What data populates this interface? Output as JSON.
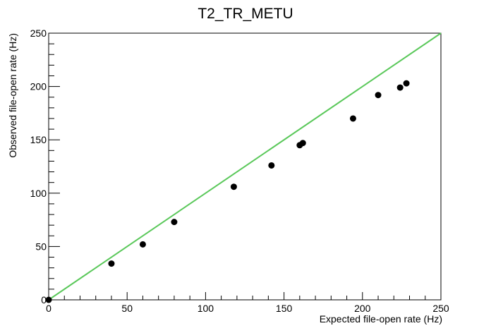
{
  "chart_data": {
    "type": "scatter",
    "title": "T2_TR_METU",
    "x_label": "Expected file-open rate (Hz)",
    "y_label": "Observed file-open rate (Hz)",
    "series": [
      {
        "color": "#000000",
        "x": [
          0,
          40,
          60,
          80,
          118,
          142,
          160,
          162,
          194,
          210,
          224,
          228
        ],
        "values": [
          0,
          34,
          52,
          73,
          106,
          126,
          145,
          147,
          170,
          192,
          199,
          203
        ]
      },
      {
        "type": "line",
        "color": "#5ac85a",
        "x": [
          0,
          250
        ],
        "values": [
          0,
          250
        ]
      }
    ],
    "xlim": [
      0,
      250
    ],
    "ylim": [
      0,
      250
    ],
    "xticks": [
      0,
      50,
      100,
      150,
      200,
      250
    ],
    "yticks": [
      0,
      50,
      100,
      150,
      200,
      250
    ],
    "xminorticks": [
      10,
      20,
      30,
      40,
      60,
      70,
      80,
      90,
      110,
      120,
      130,
      140,
      160,
      170,
      180,
      190,
      210,
      220,
      230,
      240
    ],
    "yminorticks": [
      10,
      20,
      30,
      40,
      60,
      70,
      80,
      90,
      110,
      120,
      130,
      140,
      160,
      170,
      180,
      190,
      210,
      220,
      230,
      240
    ]
  }
}
